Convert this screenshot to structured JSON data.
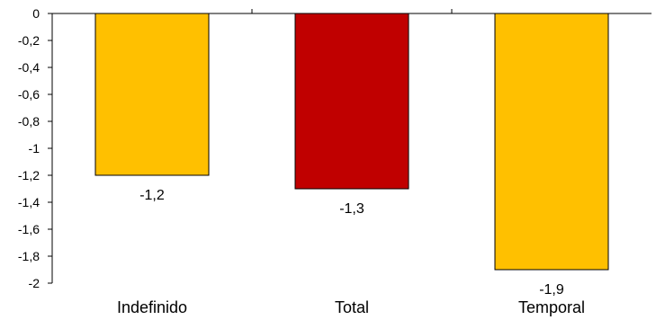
{
  "chart_data": {
    "type": "bar",
    "categories": [
      "Indefinido",
      "Total",
      "Temporal"
    ],
    "values": [
      -1.2,
      -1.3,
      -1.9
    ],
    "data_labels": [
      "-1,2",
      "-1,3",
      "-1,9"
    ],
    "colors": [
      "#FFC000",
      "#C00000",
      "#FFC000"
    ],
    "ylim": [
      -2,
      0
    ],
    "yticks": [
      {
        "value": 0,
        "label": "0"
      },
      {
        "value": -0.2,
        "label": "-0,2"
      },
      {
        "value": -0.4,
        "label": "-0,4"
      },
      {
        "value": -0.6,
        "label": "-0,6"
      },
      {
        "value": -0.8,
        "label": "-0,8"
      },
      {
        "value": -1.0,
        "label": "-1"
      },
      {
        "value": -1.2,
        "label": "-1,2"
      },
      {
        "value": -1.4,
        "label": "-1,4"
      },
      {
        "value": -1.6,
        "label": "-1,6"
      },
      {
        "value": -1.8,
        "label": "-1,8"
      },
      {
        "value": -2.0,
        "label": "-2"
      }
    ],
    "grid": false,
    "legend": "none"
  }
}
